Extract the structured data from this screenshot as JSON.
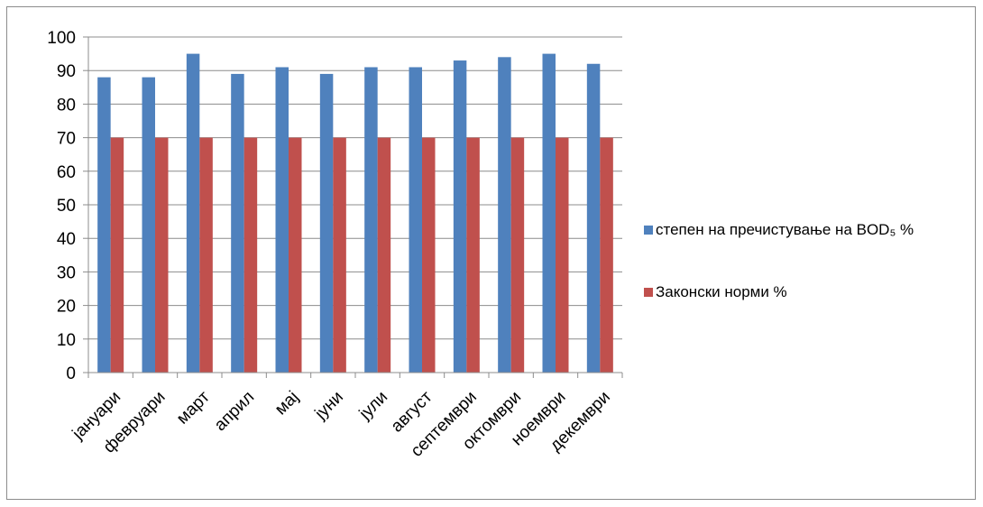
{
  "chart_data": {
    "type": "bar",
    "categories": [
      "јануари",
      "февруари",
      "март",
      "април",
      "мај",
      "јуни",
      "јули",
      "август",
      "септември",
      "октомври",
      "ноември",
      "декември"
    ],
    "series": [
      {
        "name": "степен на пречистување на BOD₅ %",
        "color": "#4F81BD",
        "values": [
          88,
          88,
          95,
          89,
          91,
          89,
          91,
          91,
          93,
          94,
          95,
          92
        ]
      },
      {
        "name": "Законски норми %",
        "color": "#C0504D",
        "values": [
          70,
          70,
          70,
          70,
          70,
          70,
          70,
          70,
          70,
          70,
          70,
          70
        ]
      }
    ],
    "ylim": [
      0,
      100
    ],
    "yticks": [
      0,
      10,
      20,
      30,
      40,
      50,
      60,
      70,
      80,
      90,
      100
    ],
    "grid": true,
    "legend_position": "right"
  }
}
